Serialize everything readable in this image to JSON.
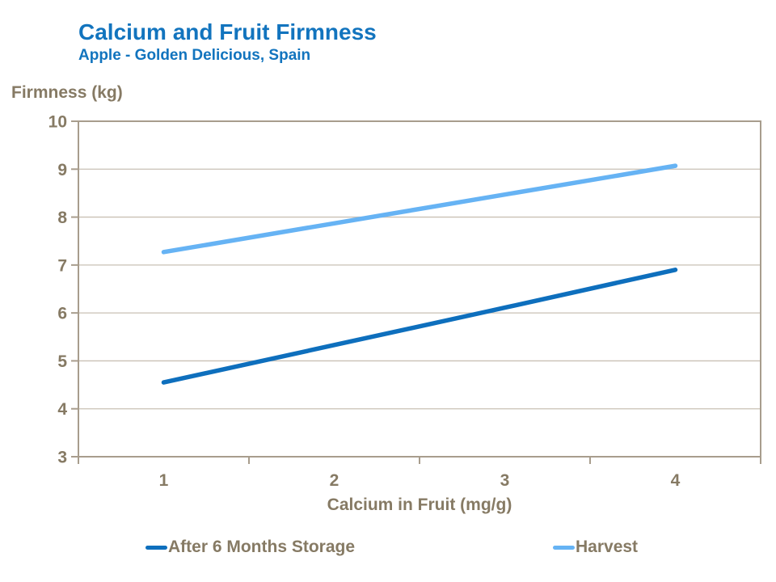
{
  "style": {
    "background": "#FFFFFF",
    "title_color": "#1274BE",
    "axis_text_color": "#867A64",
    "frame_color": "#A89D8D",
    "gridline_color": "#C9C0B4"
  },
  "chart_data": {
    "type": "line",
    "title": "Calcium and Fruit Firmness",
    "subtitle": "Apple - Golden Delicious, Spain",
    "xlabel": "Calcium in Fruit (mg/g)",
    "ylabel": "Firmness (kg)",
    "x": [
      1,
      2,
      3,
      4
    ],
    "xticks": [
      "1",
      "2",
      "3",
      "4"
    ],
    "yticks": [
      3,
      4,
      5,
      6,
      7,
      8,
      9,
      10
    ],
    "ylim": [
      3,
      10
    ],
    "grid": "horizontal-only",
    "legend_position": "bottom",
    "series": [
      {
        "name": "After 6 Months Storage",
        "color": "#0E6FBD",
        "values": [
          4.55,
          5.33,
          6.11,
          6.9
        ]
      },
      {
        "name": "Harvest",
        "color": "#66B3F4",
        "values": [
          7.27,
          7.87,
          8.47,
          9.07
        ]
      }
    ]
  }
}
